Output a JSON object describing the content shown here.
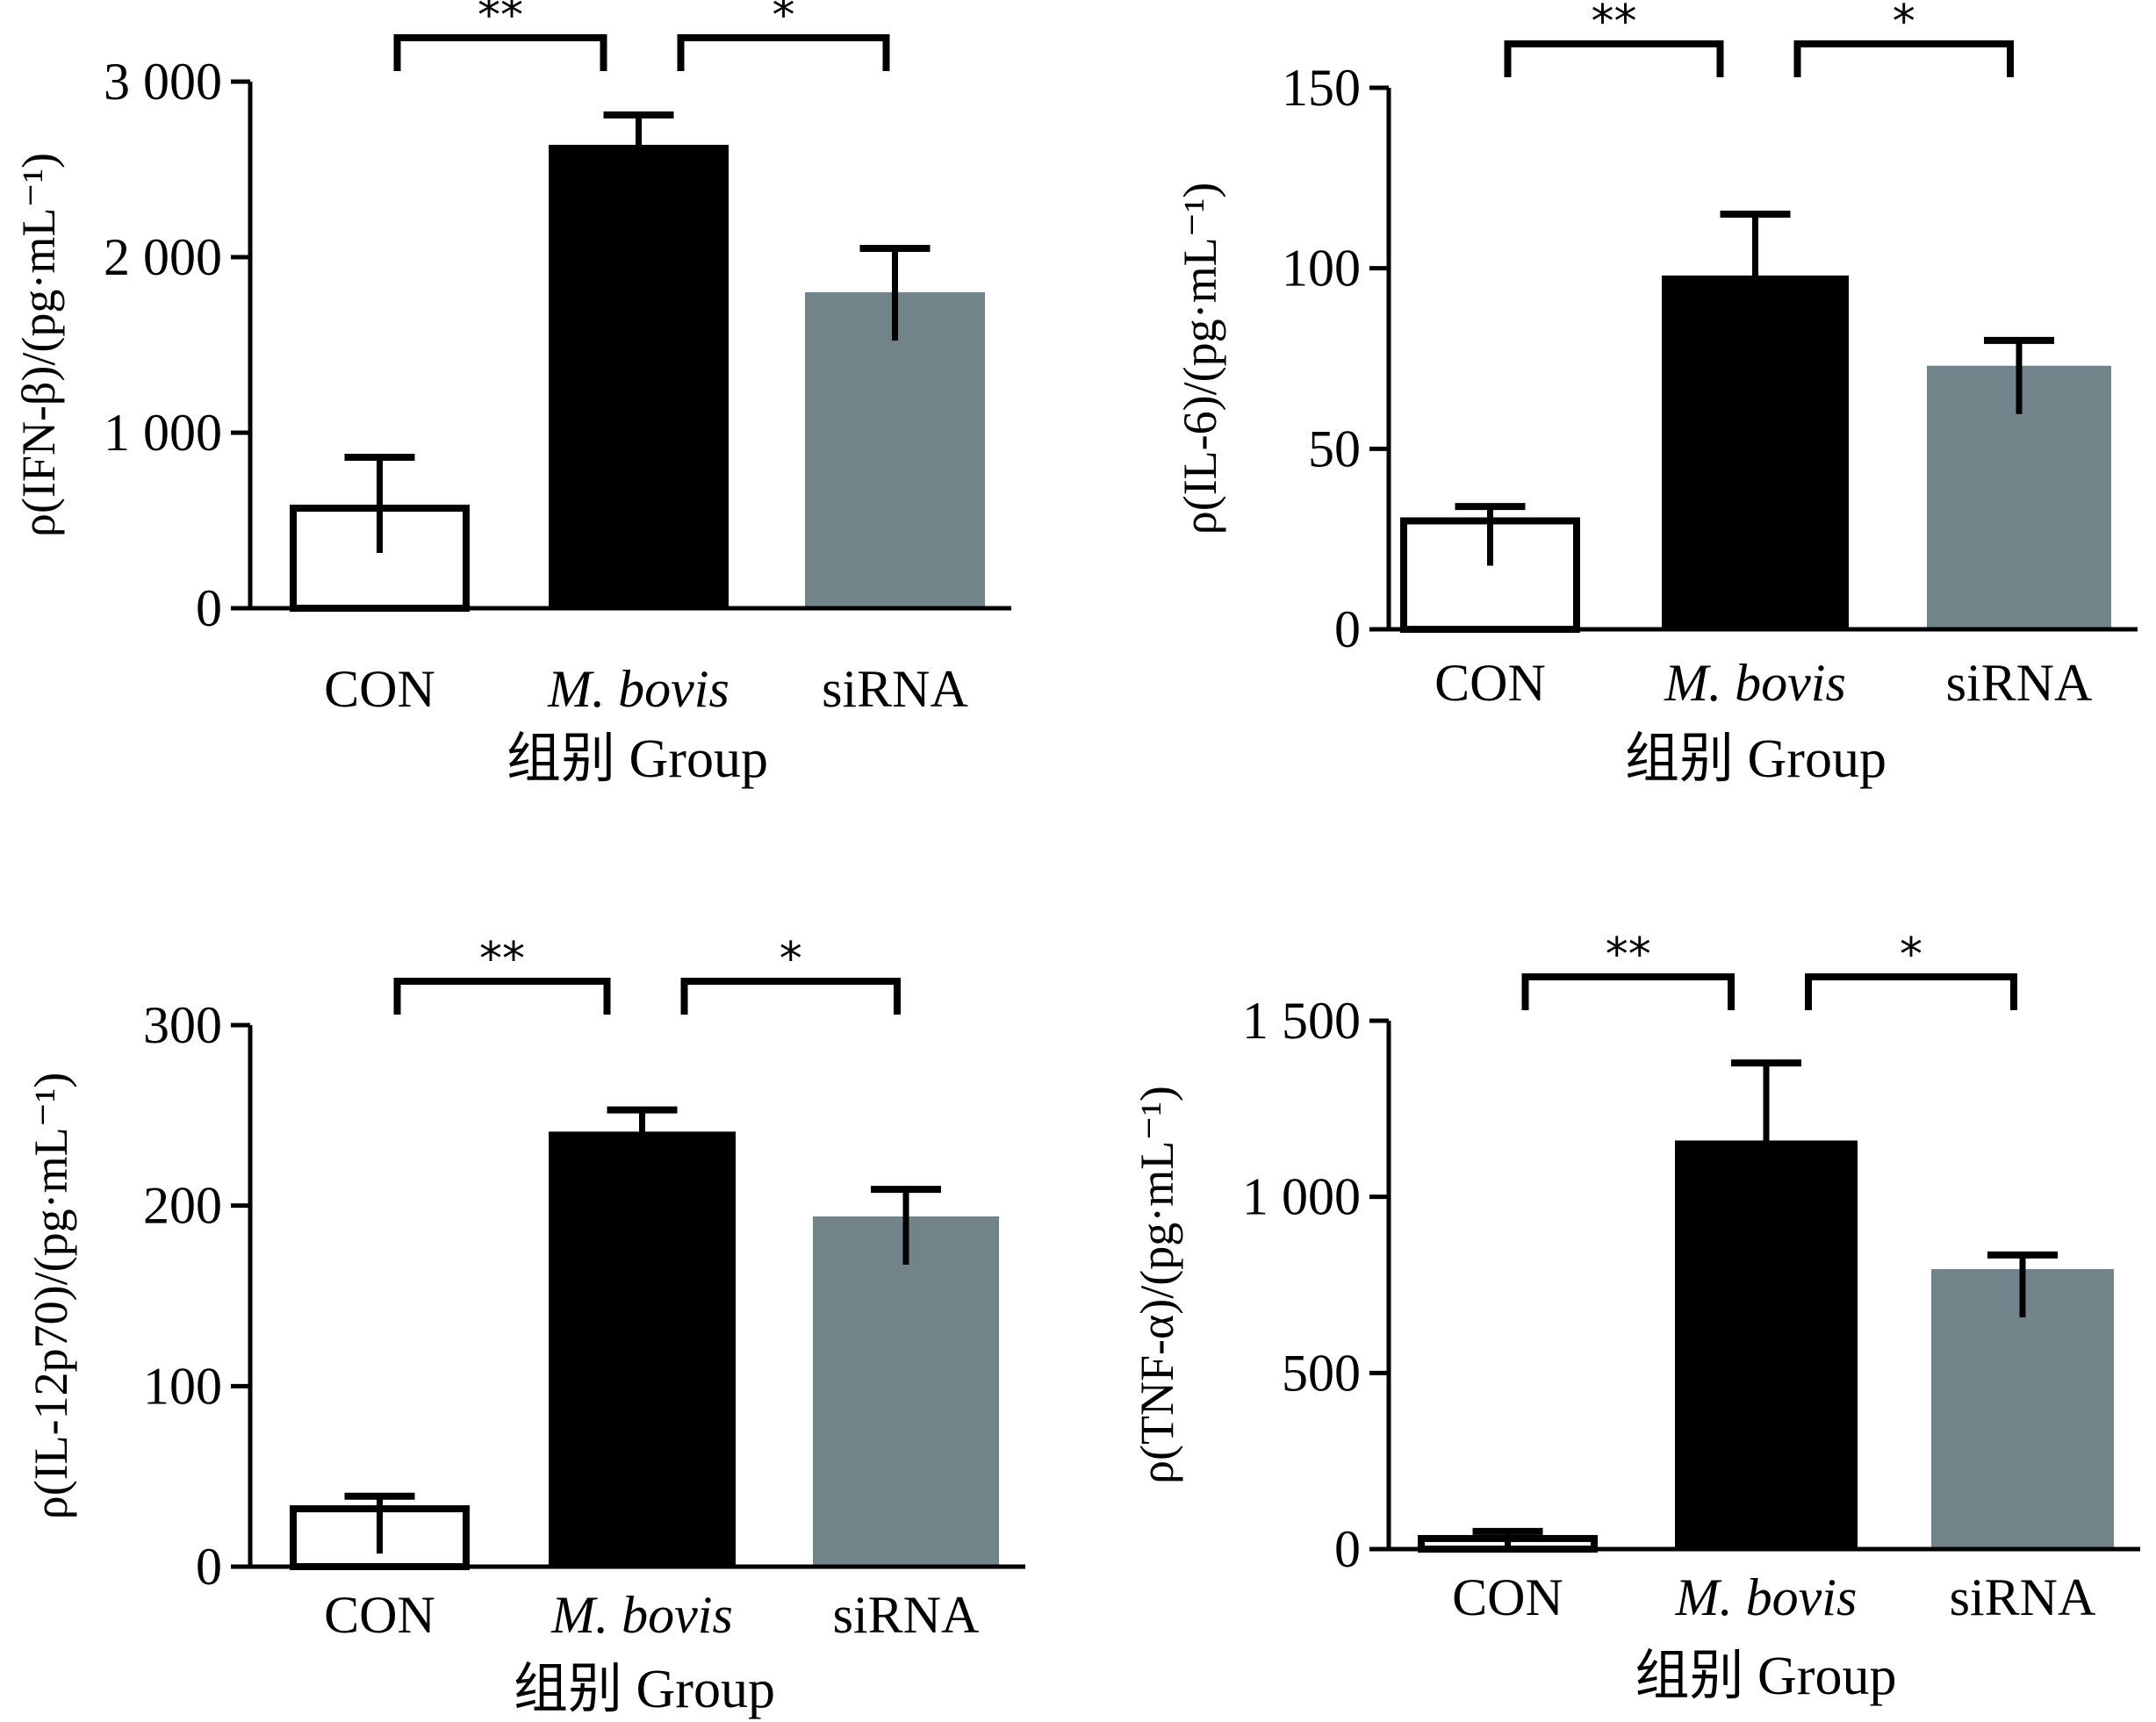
{
  "figure": {
    "colors": {
      "CON": "#ffffff",
      "M. bovis": "#000000",
      "siRNA": "#728489",
      "axis": "#000000"
    }
  },
  "chart_data": [
    {
      "type": "bar",
      "panel": "top-left",
      "ylabel": "ρ(IFN-β)/(pg·mL⁻¹)",
      "xlabel": "组别 Group",
      "categories": [
        "CON",
        "M. bovis",
        "siRNA"
      ],
      "values": [
        590,
        2640,
        1800
      ],
      "errors": [
        270,
        170,
        250
      ],
      "ylim": [
        0,
        3000
      ],
      "yticks": [
        0,
        1000,
        2000,
        3000
      ],
      "ytick_labels": [
        "0",
        "1 000",
        "2 000",
        "3 000"
      ],
      "significance": [
        {
          "from": 0,
          "to": 1,
          "label": "**"
        },
        {
          "from": 1,
          "to": 2,
          "label": "*"
        }
      ]
    },
    {
      "type": "bar",
      "panel": "top-right",
      "ylabel": "ρ(IL-6)/(pg·mL⁻¹)",
      "xlabel": "组别 Group",
      "categories": [
        "CON",
        "M. bovis",
        "siRNA"
      ],
      "values": [
        31,
        98,
        73
      ],
      "errors": [
        3,
        17,
        7
      ],
      "ylim": [
        0,
        150
      ],
      "yticks": [
        0,
        50,
        100,
        150
      ],
      "ytick_labels": [
        "0",
        "50",
        "100",
        "150"
      ],
      "significance": [
        {
          "from": 0,
          "to": 1,
          "label": "**"
        },
        {
          "from": 1,
          "to": 2,
          "label": "*"
        }
      ]
    },
    {
      "type": "bar",
      "panel": "bottom-left",
      "ylabel": "ρ(IL-12p70)/(pg·mL⁻¹)",
      "xlabel": "组别 Group",
      "categories": [
        "CON",
        "M. bovis",
        "siRNA"
      ],
      "values": [
        34,
        241,
        194
      ],
      "errors": [
        5,
        12,
        15
      ],
      "ylim": [
        0,
        300
      ],
      "yticks": [
        0,
        100,
        200,
        300
      ],
      "ytick_labels": [
        "0",
        "100",
        "200",
        "300"
      ],
      "significance": [
        {
          "from": 0,
          "to": 1,
          "label": "**"
        },
        {
          "from": 1,
          "to": 2,
          "label": "*"
        }
      ]
    },
    {
      "type": "bar",
      "panel": "bottom-right",
      "ylabel": "ρ(TNF-α)/(pg·mL⁻¹)",
      "xlabel": "组别 Group",
      "categories": [
        "CON",
        "M. bovis",
        "siRNA"
      ],
      "values": [
        40,
        1160,
        795
      ],
      "errors": [
        10,
        220,
        40
      ],
      "ylim": [
        0,
        1500
      ],
      "yticks": [
        0,
        500,
        1000,
        1500
      ],
      "ytick_labels": [
        "0",
        "500",
        "1 000",
        "1 500"
      ],
      "significance": [
        {
          "from": 0,
          "to": 1,
          "label": "**"
        },
        {
          "from": 1,
          "to": 2,
          "label": "*"
        }
      ]
    }
  ]
}
